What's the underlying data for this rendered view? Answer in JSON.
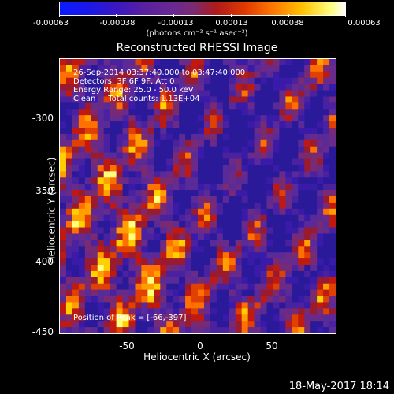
{
  "colorbar": {
    "ticks": [
      "-0.00063",
      "-0.00038",
      "-0.00013",
      "0.00013",
      "0.00038",
      "0.00063"
    ],
    "units": "(photons cm⁻² s⁻¹ asec⁻²)"
  },
  "title": "Reconstructed RHESSI Image",
  "info": {
    "time_range": "26-Sep-2014 03:37:40.000 to 03:47:40.000",
    "detectors": "Detectors: 3F 6F 9F, Att 0",
    "energy": "Energy Range: 25.0 - 50.0 keV",
    "clean": "Clean     Total counts: 1.13E+04"
  },
  "peak": "Position of Peak = [-66,-397]",
  "axes": {
    "xlabel": "Heliocentric X (arcsec)",
    "ylabel": "Heliocentric Y (arcsec)",
    "xticks": [
      "-50",
      "0",
      "50"
    ],
    "yticks": [
      "-300",
      "-350",
      "-400",
      "-450"
    ]
  },
  "footer": "18-May-2017 18:14"
}
